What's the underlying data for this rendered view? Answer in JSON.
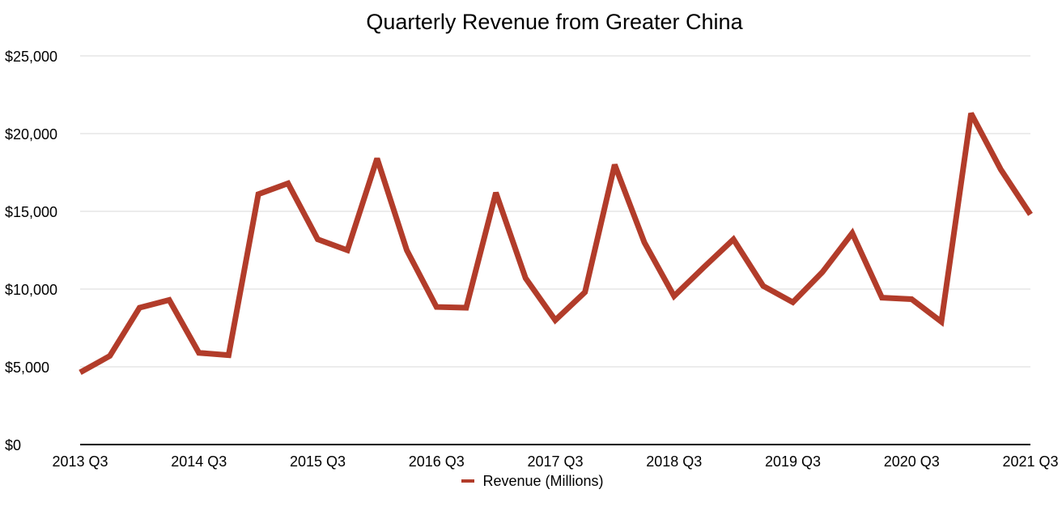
{
  "chart_data": {
    "type": "line",
    "title": "Quarterly Revenue from Greater China",
    "xlabel": "",
    "ylabel": "",
    "ylim": [
      0,
      25000
    ],
    "yticks": [
      0,
      5000,
      10000,
      15000,
      20000,
      25000
    ],
    "ytick_labels": [
      "$0",
      "$5,000",
      "$10,000",
      "$15,000",
      "$20,000",
      "$25,000"
    ],
    "x": [
      "2013 Q3",
      "2013 Q4",
      "2014 Q1",
      "2014 Q2",
      "2014 Q3",
      "2014 Q4",
      "2015 Q1",
      "2015 Q2",
      "2015 Q3",
      "2015 Q4",
      "2016 Q1",
      "2016 Q2",
      "2016 Q3",
      "2016 Q4",
      "2017 Q1",
      "2017 Q2",
      "2017 Q3",
      "2017 Q4",
      "2018 Q1",
      "2018 Q2",
      "2018 Q3",
      "2018 Q4",
      "2019 Q1",
      "2019 Q2",
      "2019 Q3",
      "2019 Q4",
      "2020 Q1",
      "2020 Q2",
      "2020 Q3",
      "2020 Q4",
      "2021 Q1",
      "2021 Q2",
      "2021 Q3"
    ],
    "xtick_labels": [
      "2013 Q3",
      "2014 Q3",
      "2015 Q3",
      "2016 Q3",
      "2017 Q3",
      "2018 Q3",
      "2019 Q3",
      "2020 Q3",
      "2021 Q3"
    ],
    "series": [
      {
        "name": "Revenue (Millions)",
        "color": "#b23c2a",
        "values": [
          4640,
          5700,
          8800,
          9300,
          5900,
          5750,
          16100,
          16800,
          13200,
          12500,
          18400,
          12500,
          8850,
          8800,
          16200,
          10700,
          8000,
          9800,
          18000,
          13000,
          9550,
          11400,
          13200,
          10200,
          9150,
          11100,
          13600,
          9450,
          9350,
          7900,
          21300,
          17700,
          14800
        ]
      }
    ],
    "grid": true,
    "legend_position": "bottom"
  }
}
